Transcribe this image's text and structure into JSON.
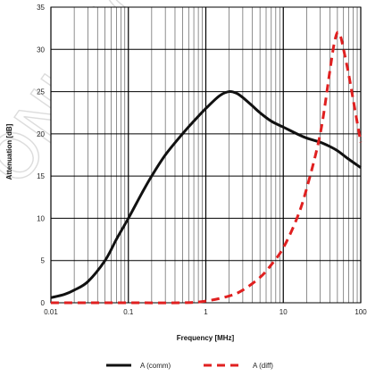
{
  "chart_data": {
    "type": "line",
    "title": "",
    "xlabel": "Frequency [MHz]",
    "ylabel": "Attenuation [dB]",
    "x_scale": "log",
    "xlim": [
      0.01,
      100
    ],
    "ylim": [
      0,
      35
    ],
    "grid": true,
    "legend_position": "bottom",
    "x_tick_labels": [
      "0.01",
      "0.1",
      "1",
      "10",
      "100"
    ],
    "x_tick_values": [
      0.01,
      0.1,
      1,
      10,
      100
    ],
    "y_tick_labels": [
      "0",
      "5",
      "10",
      "15",
      "20",
      "25",
      "30",
      "35"
    ],
    "y_tick_values": [
      0,
      5,
      10,
      15,
      20,
      25,
      30,
      35
    ],
    "series": [
      {
        "name": "A (comm)",
        "color": "#111111",
        "dash": "solid",
        "points": [
          [
            0.01,
            0.6
          ],
          [
            0.015,
            1.0
          ],
          [
            0.02,
            1.5
          ],
          [
            0.03,
            2.5
          ],
          [
            0.05,
            5.0
          ],
          [
            0.07,
            7.5
          ],
          [
            0.1,
            10.0
          ],
          [
            0.15,
            13.0
          ],
          [
            0.2,
            15.0
          ],
          [
            0.3,
            17.5
          ],
          [
            0.5,
            20.0
          ],
          [
            0.7,
            21.5
          ],
          [
            1,
            23.0
          ],
          [
            1.5,
            24.5
          ],
          [
            2,
            25.0
          ],
          [
            2.5,
            24.8
          ],
          [
            3,
            24.3
          ],
          [
            4,
            23.3
          ],
          [
            5,
            22.5
          ],
          [
            7,
            21.5
          ],
          [
            10,
            20.8
          ],
          [
            15,
            20.0
          ],
          [
            20,
            19.5
          ],
          [
            30,
            19.0
          ],
          [
            40,
            18.5
          ],
          [
            50,
            18.0
          ],
          [
            70,
            17.0
          ],
          [
            100,
            16.0
          ]
        ]
      },
      {
        "name": "A (diff)",
        "color": "#e02020",
        "dash": "dashed",
        "points": [
          [
            0.01,
            0.0
          ],
          [
            0.1,
            0.0
          ],
          [
            0.5,
            0.0
          ],
          [
            1,
            0.2
          ],
          [
            2,
            0.8
          ],
          [
            3,
            1.5
          ],
          [
            5,
            3.0
          ],
          [
            7,
            4.5
          ],
          [
            10,
            6.5
          ],
          [
            15,
            10.0
          ],
          [
            20,
            13.5
          ],
          [
            30,
            20.0
          ],
          [
            40,
            27.5
          ],
          [
            45,
            30.5
          ],
          [
            50,
            32.0
          ],
          [
            55,
            31.5
          ],
          [
            60,
            30.0
          ],
          [
            70,
            27.0
          ],
          [
            80,
            24.0
          ],
          [
            100,
            19.0
          ]
        ]
      }
    ]
  },
  "legend": {
    "items": [
      {
        "label": "A (comm)",
        "color": "#111111",
        "style": "solid"
      },
      {
        "label": "A (diff)",
        "color": "#e02020",
        "style": "dashed"
      }
    ]
  }
}
